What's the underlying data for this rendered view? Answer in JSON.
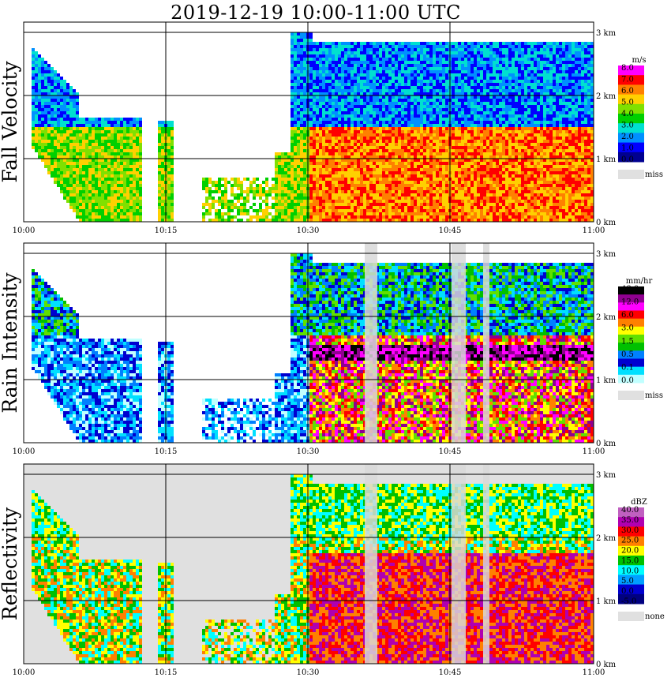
{
  "title": "2019-12-19   10:00-11:00 UTC",
  "chart_data": [
    {
      "type": "heatmap",
      "ylabel": "Fall Velocity",
      "x_ticks": [
        "10:00",
        "10:15",
        "10:30",
        "10:45",
        "11:00"
      ],
      "y_ticks": [
        "0 km",
        "1 km",
        "2 km",
        "3 km"
      ],
      "ylim_km": [
        0,
        3.2
      ],
      "grid": true,
      "colorbar": {
        "unit": "m/s",
        "levels": [
          "8.0",
          "7.0",
          "6.0",
          "5.0",
          "4.0",
          "3.0",
          "2.0",
          "1.0",
          "0.0"
        ],
        "colors": [
          "#ff00ff",
          "#ff0000",
          "#ff8000",
          "#ffd000",
          "#80e000",
          "#00d000",
          "#00e0d0",
          "#0090ff",
          "#0000ff",
          "#000090"
        ],
        "missing_label": "miss",
        "missing_color": "#e0e0e0"
      },
      "background": "#ffffff"
    },
    {
      "type": "heatmap",
      "ylabel": "Rain Intensity",
      "x_ticks": [
        "10:00",
        "10:15",
        "10:30",
        "10:45",
        "11:00"
      ],
      "y_ticks": [
        "0 km",
        "1 km",
        "2 km",
        "3 km"
      ],
      "ylim_km": [
        0,
        3.2
      ],
      "grid": true,
      "colorbar": {
        "unit": "mm/hr",
        "levels": [
          "48.0",
          "12.0",
          "6.0",
          "3.0",
          "1.5",
          "0.5",
          "0.1",
          "0.0"
        ],
        "colors": [
          "#000000",
          "#900090",
          "#ff00ff",
          "#ff0000",
          "#ff8000",
          "#ffff00",
          "#60e000",
          "#00c000",
          "#0080ff",
          "#0000d0",
          "#00e0ff",
          "#c0ffff"
        ],
        "missing_label": "miss",
        "missing_color": "#e0e0e0"
      },
      "background": "#ffffff"
    },
    {
      "type": "heatmap",
      "ylabel": "Reflectivity",
      "x_ticks": [
        "10:00",
        "10:15",
        "10:30",
        "10:45",
        "11:00"
      ],
      "y_ticks": [
        "0 km",
        "1 km",
        "2 km",
        "3 km"
      ],
      "ylim_km": [
        0,
        3.2
      ],
      "grid": true,
      "colorbar": {
        "unit": "dBZ",
        "levels": [
          "40.0",
          "35.0",
          "30.0",
          "25.0",
          "20.0",
          "15.0",
          "10.0",
          "5.0",
          "0.0",
          "-5.0"
        ],
        "colors": [
          "#c060c0",
          "#b000b0",
          "#ff0000",
          "#ff8000",
          "#ffff00",
          "#00c000",
          "#00ffff",
          "#00a0ff",
          "#0000d0",
          "#000080"
        ],
        "missing_label": "none",
        "missing_color": "#e0e0e0"
      },
      "background": "#e0e0e0"
    }
  ]
}
